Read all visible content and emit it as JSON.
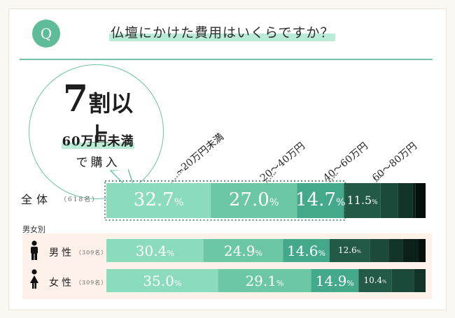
{
  "header": {
    "badge": "Q",
    "question": "仏壇にかけた費用はいくらですか？"
  },
  "bubble": {
    "big_number": "7",
    "big_text": "割以上",
    "line1": "60万円未満",
    "line2": "で購入"
  },
  "rows": {
    "all": {
      "label": "全体",
      "n": "（618名）"
    },
    "gender_heading": "男女別",
    "male": {
      "label": "男性",
      "n": "（309名）"
    },
    "female": {
      "label": "女性",
      "n": "（309名）"
    }
  },
  "chart_data": {
    "type": "bar",
    "orientation": "horizontal-stacked-100",
    "categories": [
      "~20万円未満",
      "20～40万円",
      "40～60万円",
      "60～80万円"
    ],
    "series": [
      {
        "name": "全体",
        "values": [
          32.7,
          27.0,
          14.7,
          11.5
        ],
        "labels": [
          "32.7",
          "27.0",
          "14.7",
          "11.5"
        ]
      },
      {
        "name": "男性",
        "values": [
          30.4,
          24.9,
          14.6,
          12.6
        ],
        "labels": [
          "30.4",
          "24.9",
          "14.6",
          "12.6"
        ]
      },
      {
        "name": "女性",
        "values": [
          35.0,
          29.1,
          14.9,
          10.4
        ],
        "labels": [
          "35.0",
          "29.1",
          "14.9",
          "10.4"
        ]
      }
    ],
    "remainder_values": [
      [
        5.4,
        4.6,
        1.0,
        3.1
      ],
      [
        6.0,
        4.3,
        5.0,
        2.2
      ],
      [
        6.9,
        3.7,
        0.0,
        0.0
      ]
    ],
    "unit": "%",
    "colors": [
      "#8bdbbd",
      "#6cc8a4",
      "#44a98b",
      "#235a47",
      "#1b4a3a",
      "#123429",
      "#0a2018",
      "#050f0b"
    ]
  }
}
